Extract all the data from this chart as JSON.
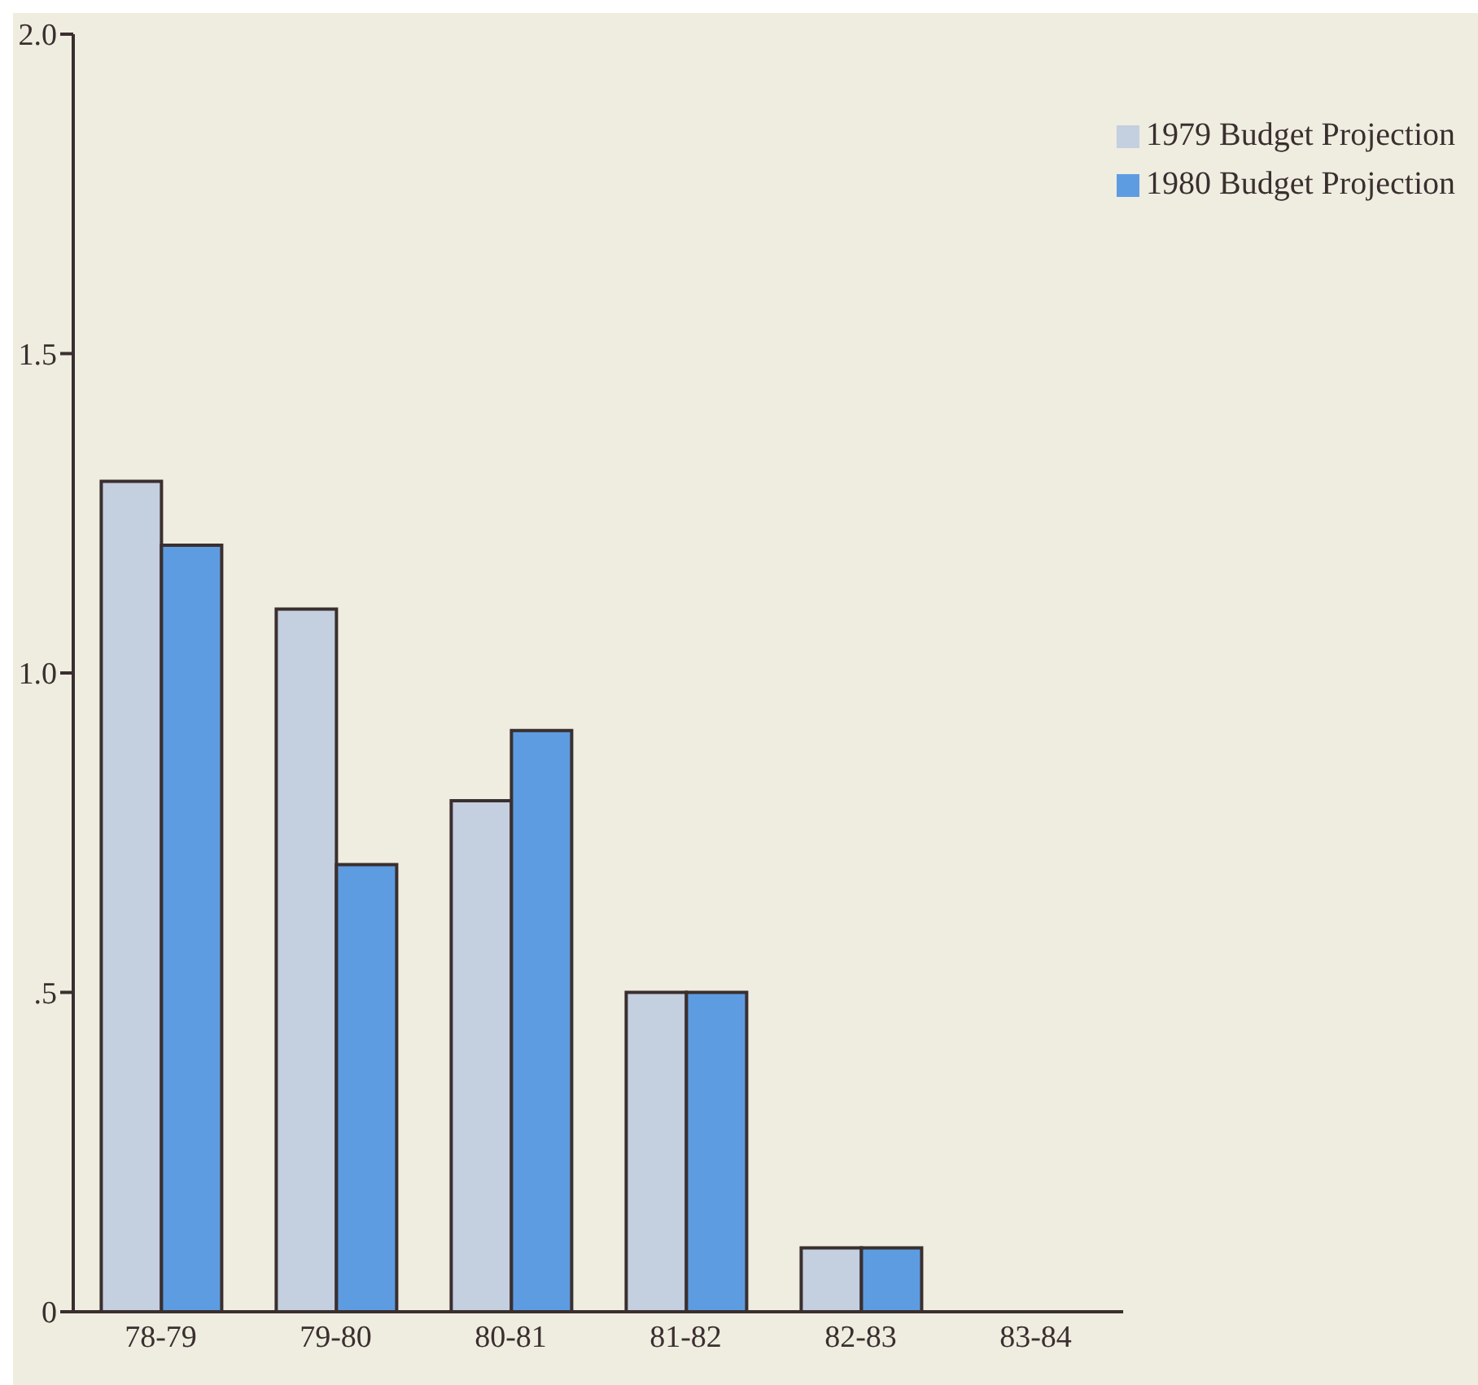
{
  "chart_data": {
    "type": "bar",
    "categories": [
      "78-79",
      "79-80",
      "80-81",
      "81-82",
      "82-83",
      "83-84"
    ],
    "series": [
      {
        "name": "1979 Budget Projection",
        "color": "#c4cfe0",
        "values": [
          1.3,
          1.1,
          0.8,
          0.5,
          0.1,
          null
        ]
      },
      {
        "name": "1980 Budget Projection",
        "color": "#5e9ce2",
        "values": [
          1.2,
          0.7,
          0.91,
          0.5,
          0.1,
          null
        ]
      }
    ],
    "ylim": [
      0,
      2
    ],
    "yticks": [
      0,
      {
        "value": 0.5,
        "label": ".5"
      },
      {
        "value": 1,
        "label": "1.0"
      },
      1.5,
      {
        "value": 2,
        "label": "2.0"
      }
    ],
    "grid": false,
    "legend": "top right"
  }
}
